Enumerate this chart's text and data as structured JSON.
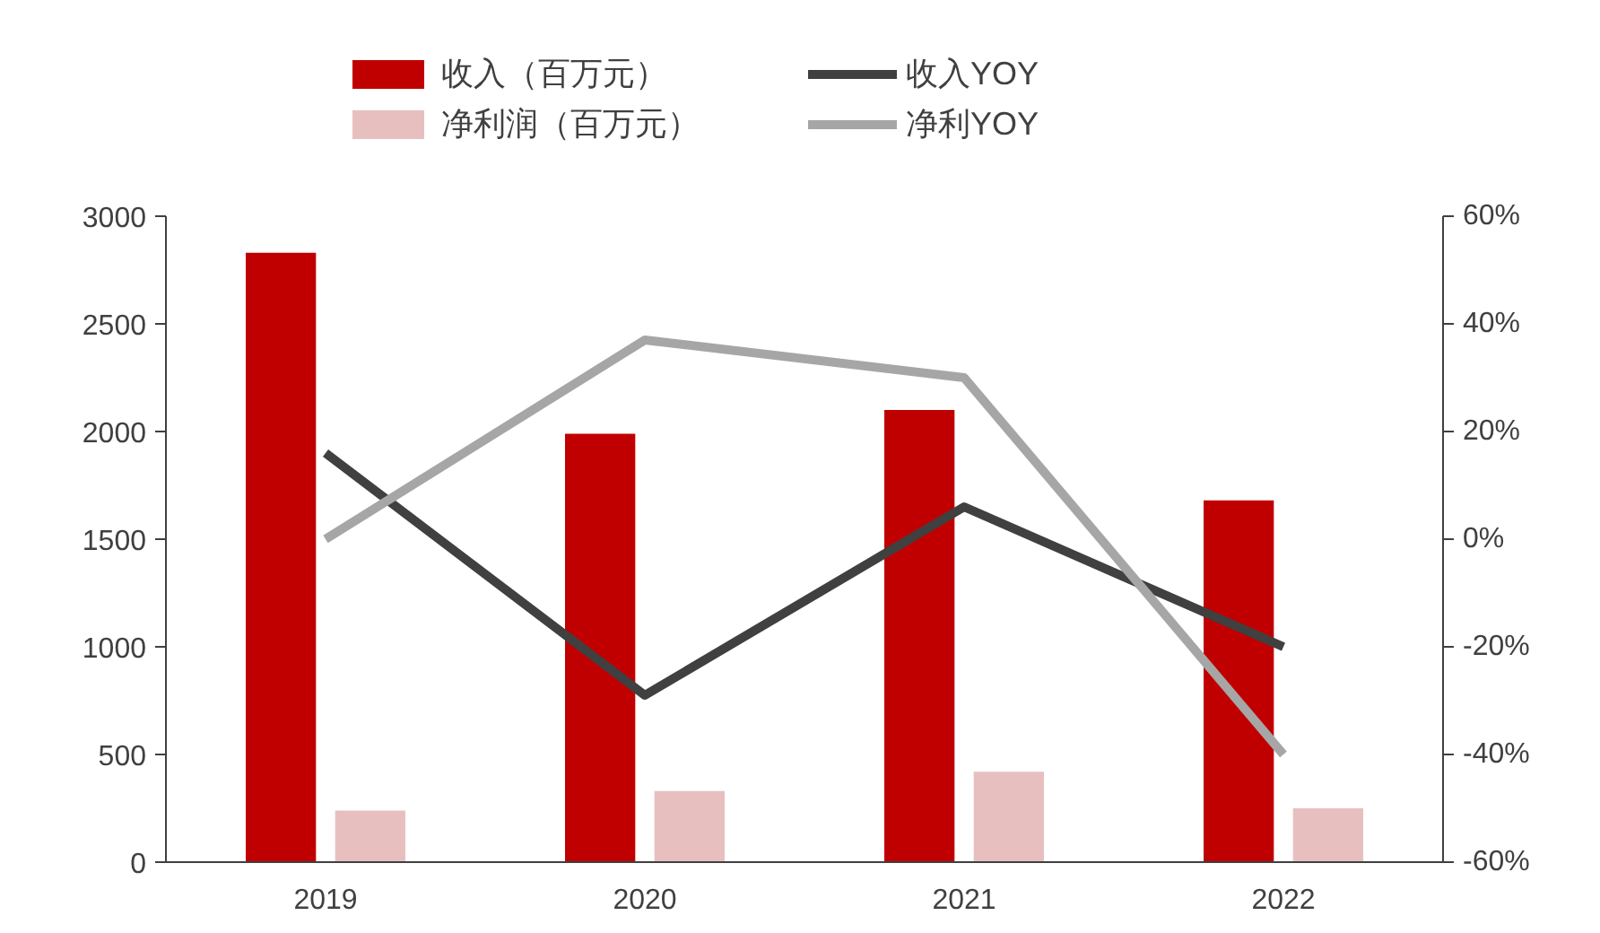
{
  "chart_data": {
    "type": "bar",
    "categories": [
      "2019",
      "2020",
      "2021",
      "2022"
    ],
    "series": [
      {
        "name": "收入（百万元）",
        "color": "#c00000",
        "values": [
          2830,
          1990,
          2100,
          1680
        ]
      },
      {
        "name": "净利润（百万元）",
        "color": "#e8bfbf",
        "values": [
          240,
          330,
          420,
          250
        ]
      },
      {
        "name": "收入YOY",
        "color": "#404040",
        "type": "line",
        "axis": "y2",
        "values": [
          16,
          -29,
          6,
          -20
        ]
      },
      {
        "name": "净利YOY",
        "color": "#a6a6a6",
        "type": "line",
        "axis": "y2",
        "values": [
          0,
          37,
          30,
          -40
        ]
      }
    ],
    "ylim": [
      0,
      3000
    ],
    "yticks": [
      0,
      500,
      1000,
      1500,
      2000,
      2500,
      3000
    ],
    "y2lim": [
      -60,
      60
    ],
    "y2ticks": [
      {
        "value": -60,
        "label": "-60%"
      },
      {
        "value": -40,
        "label": "-40%"
      },
      {
        "value": -20,
        "label": "-20%"
      },
      {
        "value": 0,
        "label": "0%"
      },
      {
        "value": 20,
        "label": "20%"
      },
      {
        "value": 40,
        "label": "40%"
      },
      {
        "value": 60,
        "label": "60%"
      }
    ],
    "grid": false,
    "legend": "top",
    "marker": "none",
    "line_style": "solid"
  }
}
